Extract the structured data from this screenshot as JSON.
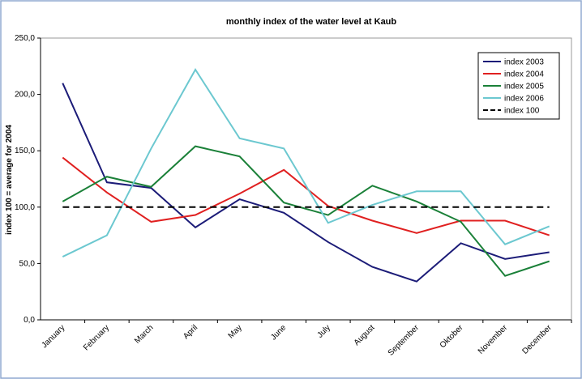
{
  "chart_data": {
    "type": "line",
    "title": "monthly index of the water level at Kaub",
    "y_label": "index 100 = average for 2004",
    "categories": [
      "January",
      "February",
      "March",
      "April",
      "May",
      "June",
      "July",
      "August",
      "September",
      "Oktober",
      "November",
      "December"
    ],
    "series": [
      {
        "name": "index 2003",
        "color": "#1c1c78",
        "dash": false,
        "values": [
          210,
          122,
          117,
          82,
          107,
          95,
          69,
          47,
          34,
          68,
          54,
          60
        ]
      },
      {
        "name": "index 2004",
        "color": "#e02020",
        "dash": false,
        "values": [
          144,
          113,
          87,
          93,
          112,
          133,
          101,
          88,
          77,
          88,
          88,
          75
        ]
      },
      {
        "name": "index 2005",
        "color": "#1a8038",
        "dash": false,
        "values": [
          105,
          127,
          118,
          154,
          145,
          104,
          93,
          119,
          105,
          87,
          39,
          52
        ]
      },
      {
        "name": "index 2006",
        "color": "#6cc8d0",
        "dash": false,
        "values": [
          56,
          75,
          152,
          222,
          161,
          152,
          86,
          102,
          114,
          114,
          67,
          83
        ]
      },
      {
        "name": "index 100",
        "color": "#000000",
        "dash": true,
        "values": [
          100,
          100,
          100,
          100,
          100,
          100,
          100,
          100,
          100,
          100,
          100,
          100
        ]
      }
    ],
    "ylim": [
      0,
      250
    ],
    "yticks": [
      {
        "value": 0,
        "label": "0,0"
      },
      {
        "value": 50,
        "label": "50,0"
      },
      {
        "value": 100,
        "label": "100,0"
      },
      {
        "value": 150,
        "label": "150,0"
      },
      {
        "value": 200,
        "label": "200,0"
      },
      {
        "value": 250,
        "label": "250,0"
      }
    ],
    "legend": "upper-right"
  }
}
